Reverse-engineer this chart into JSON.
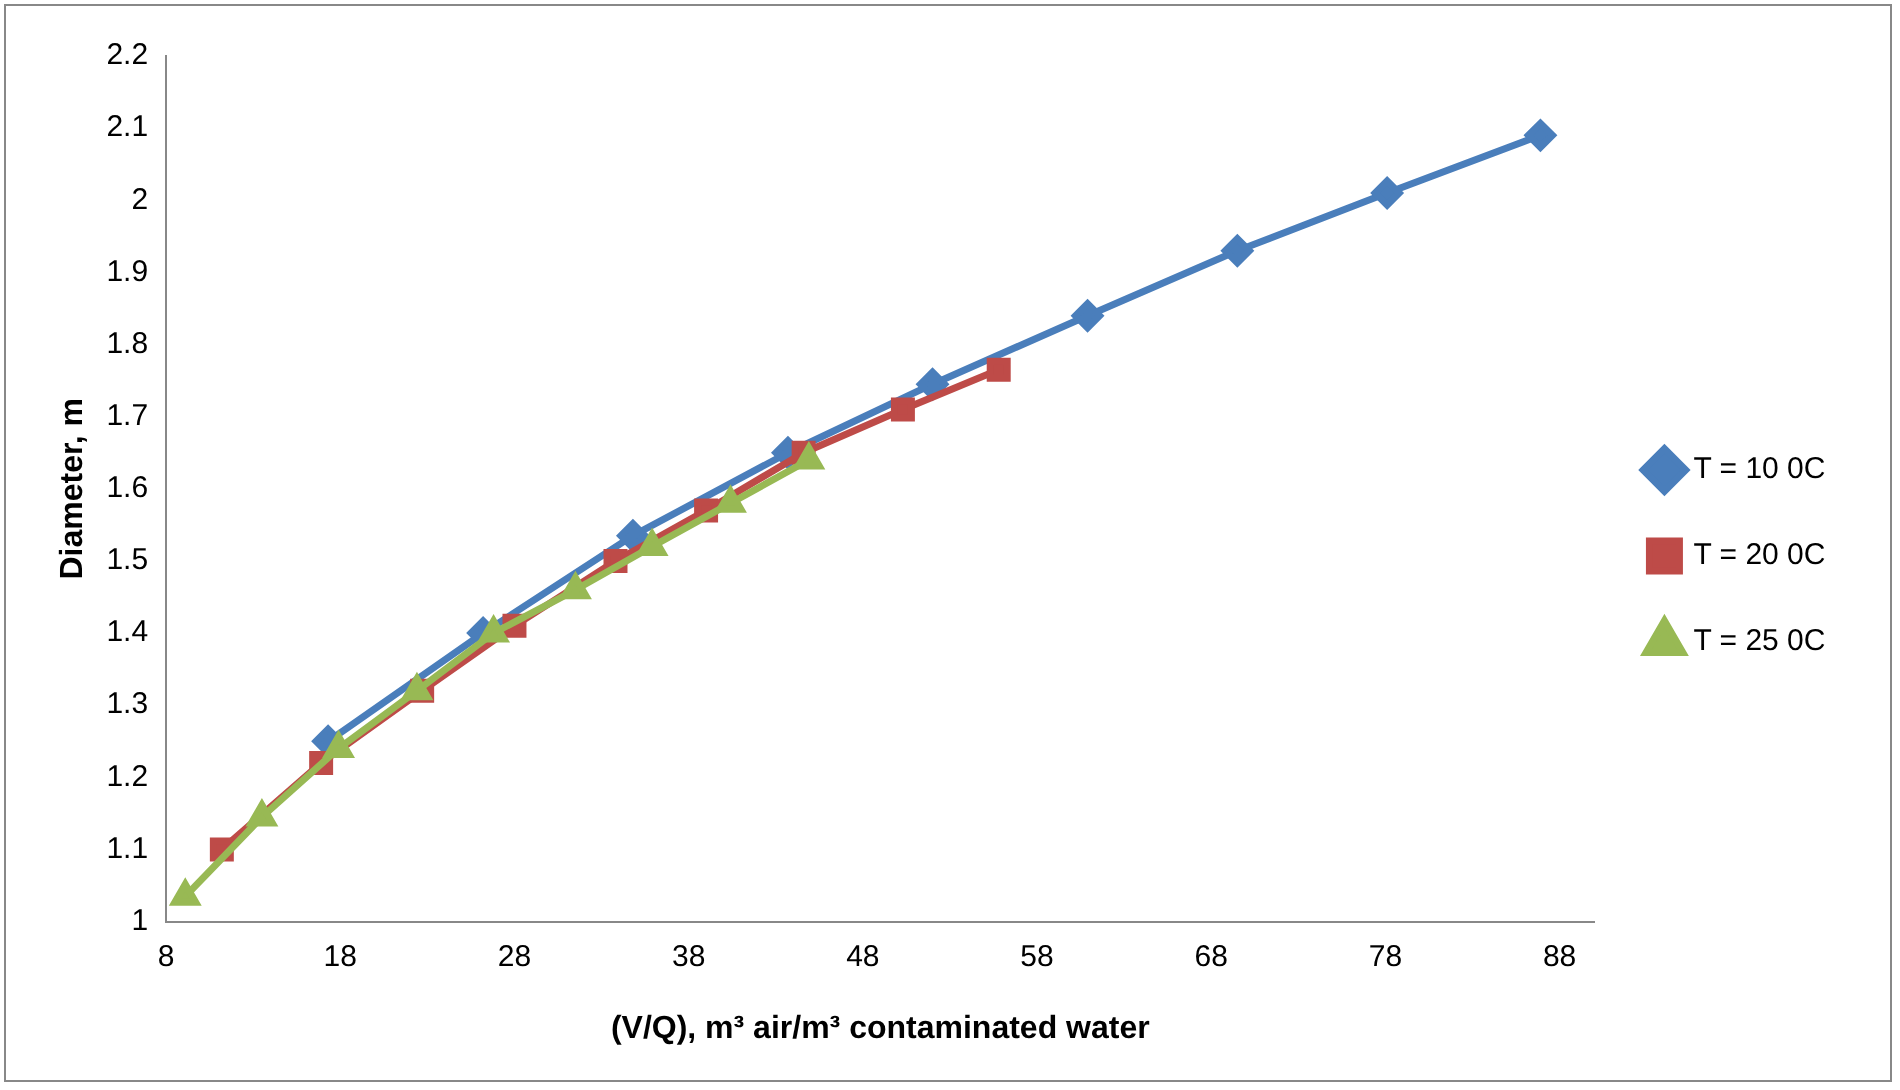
{
  "chart_data": {
    "type": "line",
    "xlabel": "(V/Q), m³ air/m³ contaminated water",
    "ylabel": "Diameter, m",
    "xlim": [
      8,
      90
    ],
    "xticks": [
      8,
      18,
      28,
      38,
      48,
      58,
      68,
      78,
      88
    ],
    "ylim": [
      1,
      2.2
    ],
    "yticks": [
      1,
      1.1,
      1.2,
      1.3,
      1.4,
      1.5,
      1.6,
      1.7,
      1.8,
      1.9,
      2,
      2.1,
      2.2
    ],
    "grid": false,
    "legend": "right",
    "series": [
      {
        "name": "T = 10 0C",
        "color": "#4a7ebb",
        "marker": "diamond",
        "x": [
          17.3,
          26.2,
          34.8,
          43.7,
          52,
          60.9,
          69.5,
          78.1,
          86.9
        ],
        "values": [
          1.25,
          1.4,
          1.535,
          1.65,
          1.745,
          1.84,
          1.93,
          2.01,
          2.09
        ]
      },
      {
        "name": "T = 20 0C",
        "color": "#be4b48",
        "marker": "square",
        "x": [
          11.2,
          16.9,
          22.7,
          28,
          33.8,
          39,
          44.6,
          50.3,
          55.8
        ],
        "values": [
          1.1,
          1.22,
          1.32,
          1.41,
          1.5,
          1.57,
          1.65,
          1.71,
          1.765
        ]
      },
      {
        "name": "T = 25 0C",
        "color": "#98b954",
        "marker": "triangle",
        "x": [
          9.1,
          13.5,
          17.9,
          22.4,
          26.8,
          31.5,
          35.9,
          40.4,
          44.9
        ],
        "values": [
          1.035,
          1.145,
          1.24,
          1.32,
          1.4,
          1.46,
          1.52,
          1.58,
          1.64
        ]
      }
    ]
  }
}
